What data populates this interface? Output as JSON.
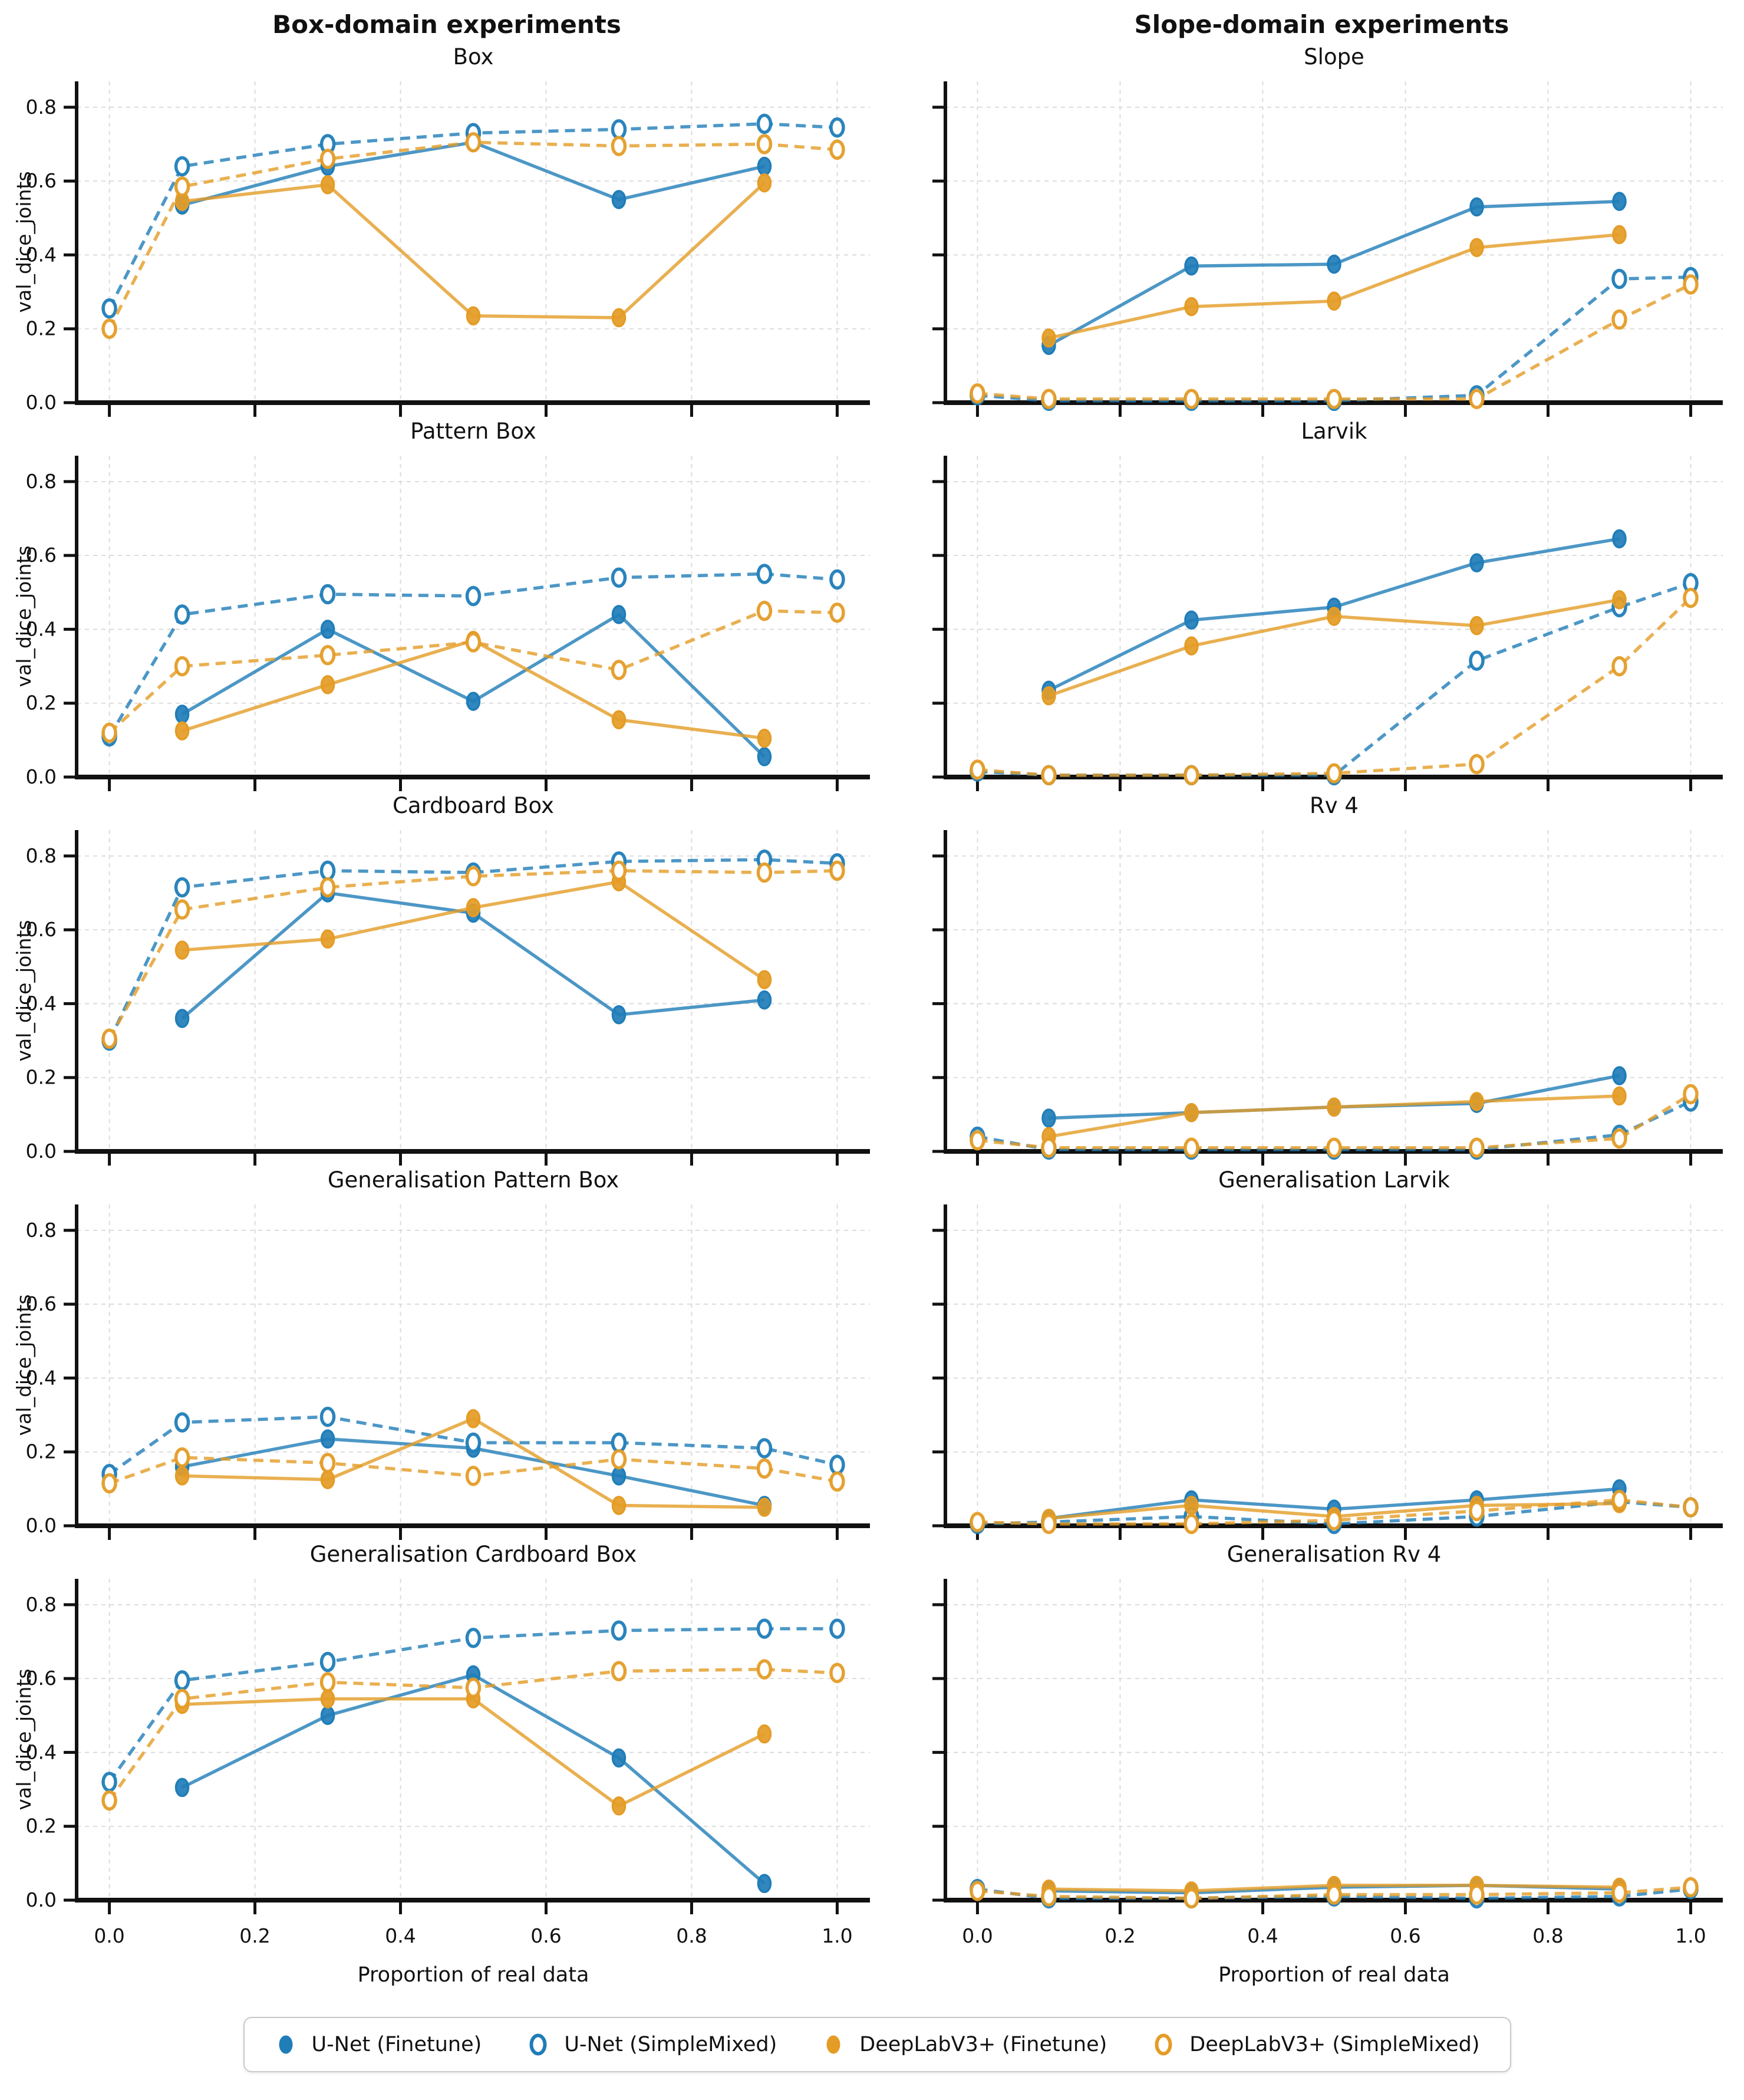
{
  "page": {
    "column_titles": [
      "Box-domain experiments",
      "Slope-domain experiments"
    ],
    "xlabel": "Proportion of real data",
    "ylabel": "val_dice_joints",
    "x_ticks": [
      "0.0",
      "0.2",
      "0.4",
      "0.6",
      "0.8",
      "1.0"
    ],
    "y_ticks": [
      "0.0",
      "0.2",
      "0.4",
      "0.6",
      "0.8"
    ]
  },
  "colors": {
    "blue": "#1f7db8",
    "orange": "#e49c26",
    "grid": "#d9d9d9",
    "axis": "#111111",
    "legend_border": "#c9c9c9"
  },
  "series_styles": {
    "unet_ft": {
      "color": "blue",
      "line": "solid",
      "marker": "filled"
    },
    "unet_sm": {
      "color": "blue",
      "line": "dashed",
      "marker": "open"
    },
    "dlv3_ft": {
      "color": "orange",
      "line": "solid",
      "marker": "filled"
    },
    "dlv3_sm": {
      "color": "orange",
      "line": "dashed",
      "marker": "open"
    }
  },
  "legend": {
    "items": [
      {
        "key": "unet_ft",
        "label": "U-Net (Finetune)"
      },
      {
        "key": "unet_sm",
        "label": "U-Net (SimpleMixed)"
      },
      {
        "key": "dlv3_ft",
        "label": "DeepLabV3+ (Finetune)"
      },
      {
        "key": "dlv3_sm",
        "label": "DeepLabV3+ (SimpleMixed)"
      }
    ]
  },
  "chart_data": [
    {
      "type": "line",
      "title": "Box",
      "column": "Box-domain experiments",
      "xlabel": "Proportion of real data",
      "ylabel": "val_dice_joints",
      "x": [
        0.0,
        0.1,
        0.3,
        0.5,
        0.7,
        0.9,
        1.0
      ],
      "ylim": [
        0.0,
        0.87
      ],
      "xlim": [
        -0.045,
        1.045
      ],
      "series": [
        {
          "key": "unet_ft",
          "name": "U-Net (Finetune)",
          "values": [
            null,
            0.535,
            0.64,
            0.705,
            0.55,
            0.64,
            null
          ]
        },
        {
          "key": "unet_sm",
          "name": "U-Net (SimpleMixed)",
          "values": [
            0.255,
            0.64,
            0.7,
            0.73,
            0.74,
            0.755,
            0.745
          ]
        },
        {
          "key": "dlv3_ft",
          "name": "DeepLabV3+ (Finetune)",
          "values": [
            null,
            0.545,
            0.59,
            0.235,
            0.23,
            0.595,
            null
          ]
        },
        {
          "key": "dlv3_sm",
          "name": "DeepLabV3+ (SimpleMixed)",
          "values": [
            0.2,
            0.585,
            0.66,
            0.705,
            0.695,
            0.7,
            0.685
          ]
        }
      ]
    },
    {
      "type": "line",
      "title": "Slope",
      "column": "Slope-domain experiments",
      "xlabel": "Proportion of real data",
      "ylabel": "val_dice_joints",
      "x": [
        0.0,
        0.1,
        0.3,
        0.5,
        0.7,
        0.9,
        1.0
      ],
      "ylim": [
        0.0,
        0.87
      ],
      "xlim": [
        -0.045,
        1.045
      ],
      "series": [
        {
          "key": "unet_ft",
          "name": "U-Net (Finetune)",
          "values": [
            null,
            0.155,
            0.37,
            0.375,
            0.53,
            0.545,
            null
          ]
        },
        {
          "key": "unet_sm",
          "name": "U-Net (SimpleMixed)",
          "values": [
            0.02,
            0.005,
            0.005,
            0.005,
            0.02,
            0.335,
            0.34
          ]
        },
        {
          "key": "dlv3_ft",
          "name": "DeepLabV3+ (Finetune)",
          "values": [
            null,
            0.175,
            0.26,
            0.275,
            0.42,
            0.455,
            null
          ]
        },
        {
          "key": "dlv3_sm",
          "name": "DeepLabV3+ (SimpleMixed)",
          "values": [
            0.025,
            0.01,
            0.01,
            0.01,
            0.01,
            0.225,
            0.32
          ]
        }
      ]
    },
    {
      "type": "line",
      "title": "Pattern Box",
      "column": "Box-domain experiments",
      "xlabel": "Proportion of real data",
      "ylabel": "val_dice_joints",
      "x": [
        0.0,
        0.1,
        0.3,
        0.5,
        0.7,
        0.9,
        1.0
      ],
      "ylim": [
        0.0,
        0.87
      ],
      "xlim": [
        -0.045,
        1.045
      ],
      "series": [
        {
          "key": "unet_ft",
          "name": "U-Net (Finetune)",
          "values": [
            null,
            0.17,
            0.4,
            0.205,
            0.44,
            0.055,
            null
          ]
        },
        {
          "key": "unet_sm",
          "name": "U-Net (SimpleMixed)",
          "values": [
            0.11,
            0.44,
            0.495,
            0.49,
            0.54,
            0.55,
            0.535
          ]
        },
        {
          "key": "dlv3_ft",
          "name": "DeepLabV3+ (Finetune)",
          "values": [
            null,
            0.125,
            0.25,
            0.37,
            0.155,
            0.105,
            null
          ]
        },
        {
          "key": "dlv3_sm",
          "name": "DeepLabV3+ (SimpleMixed)",
          "values": [
            0.12,
            0.3,
            0.33,
            0.365,
            0.29,
            0.45,
            0.445
          ]
        }
      ]
    },
    {
      "type": "line",
      "title": "Larvik",
      "column": "Slope-domain experiments",
      "xlabel": "Proportion of real data",
      "ylabel": "val_dice_joints",
      "x": [
        0.0,
        0.1,
        0.3,
        0.5,
        0.7,
        0.9,
        1.0
      ],
      "ylim": [
        0.0,
        0.87
      ],
      "xlim": [
        -0.045,
        1.045
      ],
      "series": [
        {
          "key": "unet_ft",
          "name": "U-Net (Finetune)",
          "values": [
            null,
            0.235,
            0.425,
            0.46,
            0.58,
            0.645,
            null
          ]
        },
        {
          "key": "unet_sm",
          "name": "U-Net (SimpleMixed)",
          "values": [
            0.015,
            0.005,
            0.005,
            0.005,
            0.315,
            0.46,
            0.525
          ]
        },
        {
          "key": "dlv3_ft",
          "name": "DeepLabV3+ (Finetune)",
          "values": [
            null,
            0.22,
            0.355,
            0.435,
            0.41,
            0.48,
            null
          ]
        },
        {
          "key": "dlv3_sm",
          "name": "DeepLabV3+ (SimpleMixed)",
          "values": [
            0.02,
            0.005,
            0.005,
            0.01,
            0.035,
            0.3,
            0.485
          ]
        }
      ]
    },
    {
      "type": "line",
      "title": "Cardboard Box",
      "column": "Box-domain experiments",
      "xlabel": "Proportion of real data",
      "ylabel": "val_dice_joints",
      "x": [
        0.0,
        0.1,
        0.3,
        0.5,
        0.7,
        0.9,
        1.0
      ],
      "ylim": [
        0.0,
        0.87
      ],
      "xlim": [
        -0.045,
        1.045
      ],
      "series": [
        {
          "key": "unet_ft",
          "name": "U-Net (Finetune)",
          "values": [
            null,
            0.36,
            0.7,
            0.645,
            0.37,
            0.41,
            null
          ]
        },
        {
          "key": "unet_sm",
          "name": "U-Net (SimpleMixed)",
          "values": [
            0.3,
            0.715,
            0.76,
            0.755,
            0.785,
            0.79,
            0.78
          ]
        },
        {
          "key": "dlv3_ft",
          "name": "DeepLabV3+ (Finetune)",
          "values": [
            null,
            0.545,
            0.575,
            0.66,
            0.73,
            0.465,
            null
          ]
        },
        {
          "key": "dlv3_sm",
          "name": "DeepLabV3+ (SimpleMixed)",
          "values": [
            0.305,
            0.655,
            0.715,
            0.745,
            0.76,
            0.755,
            0.76
          ]
        }
      ]
    },
    {
      "type": "line",
      "title": "Rv 4",
      "column": "Slope-domain experiments",
      "xlabel": "Proportion of real data",
      "ylabel": "val_dice_joints",
      "x": [
        0.0,
        0.1,
        0.3,
        0.5,
        0.7,
        0.9,
        1.0
      ],
      "ylim": [
        0.0,
        0.87
      ],
      "xlim": [
        -0.045,
        1.045
      ],
      "series": [
        {
          "key": "unet_ft",
          "name": "U-Net (Finetune)",
          "values": [
            null,
            0.09,
            0.105,
            0.12,
            0.13,
            0.205,
            null
          ]
        },
        {
          "key": "unet_sm",
          "name": "U-Net (SimpleMixed)",
          "values": [
            0.04,
            0.005,
            0.005,
            0.005,
            0.005,
            0.045,
            0.135
          ]
        },
        {
          "key": "dlv3_ft",
          "name": "DeepLabV3+ (Finetune)",
          "values": [
            null,
            0.04,
            0.105,
            0.12,
            0.135,
            0.15,
            null
          ]
        },
        {
          "key": "dlv3_sm",
          "name": "DeepLabV3+ (SimpleMixed)",
          "values": [
            0.03,
            0.01,
            0.01,
            0.01,
            0.01,
            0.035,
            0.155
          ]
        }
      ]
    },
    {
      "type": "line",
      "title": "Generalisation Pattern Box",
      "column": "Box-domain experiments",
      "xlabel": "Proportion of real data",
      "ylabel": "val_dice_joints",
      "x": [
        0.0,
        0.1,
        0.3,
        0.5,
        0.7,
        0.9,
        1.0
      ],
      "ylim": [
        0.0,
        0.87
      ],
      "xlim": [
        -0.045,
        1.045
      ],
      "series": [
        {
          "key": "unet_ft",
          "name": "U-Net (Finetune)",
          "values": [
            null,
            0.16,
            0.235,
            0.21,
            0.135,
            0.055,
            null
          ]
        },
        {
          "key": "unet_sm",
          "name": "U-Net (SimpleMixed)",
          "values": [
            0.14,
            0.28,
            0.295,
            0.225,
            0.225,
            0.21,
            0.165
          ]
        },
        {
          "key": "dlv3_ft",
          "name": "DeepLabV3+ (Finetune)",
          "values": [
            null,
            0.135,
            0.125,
            0.29,
            0.055,
            0.05,
            null
          ]
        },
        {
          "key": "dlv3_sm",
          "name": "DeepLabV3+ (SimpleMixed)",
          "values": [
            0.115,
            0.185,
            0.17,
            0.135,
            0.18,
            0.155,
            0.12
          ]
        }
      ]
    },
    {
      "type": "line",
      "title": "Generalisation Larvik",
      "column": "Slope-domain experiments",
      "xlabel": "Proportion of real data",
      "ylabel": "val_dice_joints",
      "x": [
        0.0,
        0.1,
        0.3,
        0.5,
        0.7,
        0.9,
        1.0
      ],
      "ylim": [
        0.0,
        0.87
      ],
      "xlim": [
        -0.045,
        1.045
      ],
      "series": [
        {
          "key": "unet_ft",
          "name": "U-Net (Finetune)",
          "values": [
            null,
            0.02,
            0.07,
            0.045,
            0.07,
            0.1,
            null
          ]
        },
        {
          "key": "unet_sm",
          "name": "U-Net (SimpleMixed)",
          "values": [
            0.005,
            0.01,
            0.025,
            0.005,
            0.025,
            0.065,
            0.05
          ]
        },
        {
          "key": "dlv3_ft",
          "name": "DeepLabV3+ (Finetune)",
          "values": [
            null,
            0.02,
            0.055,
            0.025,
            0.055,
            0.06,
            null
          ]
        },
        {
          "key": "dlv3_sm",
          "name": "DeepLabV3+ (SimpleMixed)",
          "values": [
            0.01,
            0.005,
            0.005,
            0.015,
            0.04,
            0.07,
            0.05
          ]
        }
      ]
    },
    {
      "type": "line",
      "title": "Generalisation Cardboard Box",
      "column": "Box-domain experiments",
      "xlabel": "Proportion of real data",
      "ylabel": "val_dice_joints",
      "x": [
        0.0,
        0.1,
        0.3,
        0.5,
        0.7,
        0.9,
        1.0
      ],
      "ylim": [
        0.0,
        0.87
      ],
      "xlim": [
        -0.045,
        1.045
      ],
      "series": [
        {
          "key": "unet_ft",
          "name": "U-Net (Finetune)",
          "values": [
            null,
            0.305,
            0.5,
            0.61,
            0.385,
            0.045,
            null
          ]
        },
        {
          "key": "unet_sm",
          "name": "U-Net (SimpleMixed)",
          "values": [
            0.32,
            0.595,
            0.645,
            0.71,
            0.73,
            0.735,
            0.735
          ]
        },
        {
          "key": "dlv3_ft",
          "name": "DeepLabV3+ (Finetune)",
          "values": [
            null,
            0.53,
            0.545,
            0.545,
            0.255,
            0.45,
            null
          ]
        },
        {
          "key": "dlv3_sm",
          "name": "DeepLabV3+ (SimpleMixed)",
          "values": [
            0.27,
            0.545,
            0.59,
            0.575,
            0.62,
            0.625,
            0.615
          ]
        }
      ]
    },
    {
      "type": "line",
      "title": "Generalisation Rv 4",
      "column": "Slope-domain experiments",
      "xlabel": "Proportion of real data",
      "ylabel": "val_dice_joints",
      "x": [
        0.0,
        0.1,
        0.3,
        0.5,
        0.7,
        0.9,
        1.0
      ],
      "ylim": [
        0.0,
        0.87
      ],
      "xlim": [
        -0.045,
        1.045
      ],
      "series": [
        {
          "key": "unet_ft",
          "name": "U-Net (Finetune)",
          "values": [
            null,
            0.025,
            0.02,
            0.035,
            0.04,
            0.03,
            null
          ]
        },
        {
          "key": "unet_sm",
          "name": "U-Net (SimpleMixed)",
          "values": [
            0.03,
            0.005,
            0.005,
            0.01,
            0.005,
            0.01,
            0.03
          ]
        },
        {
          "key": "dlv3_ft",
          "name": "DeepLabV3+ (Finetune)",
          "values": [
            null,
            0.03,
            0.025,
            0.04,
            0.04,
            0.035,
            null
          ]
        },
        {
          "key": "dlv3_sm",
          "name": "DeepLabV3+ (SimpleMixed)",
          "values": [
            0.025,
            0.01,
            0.005,
            0.015,
            0.015,
            0.02,
            0.035
          ]
        }
      ]
    }
  ]
}
